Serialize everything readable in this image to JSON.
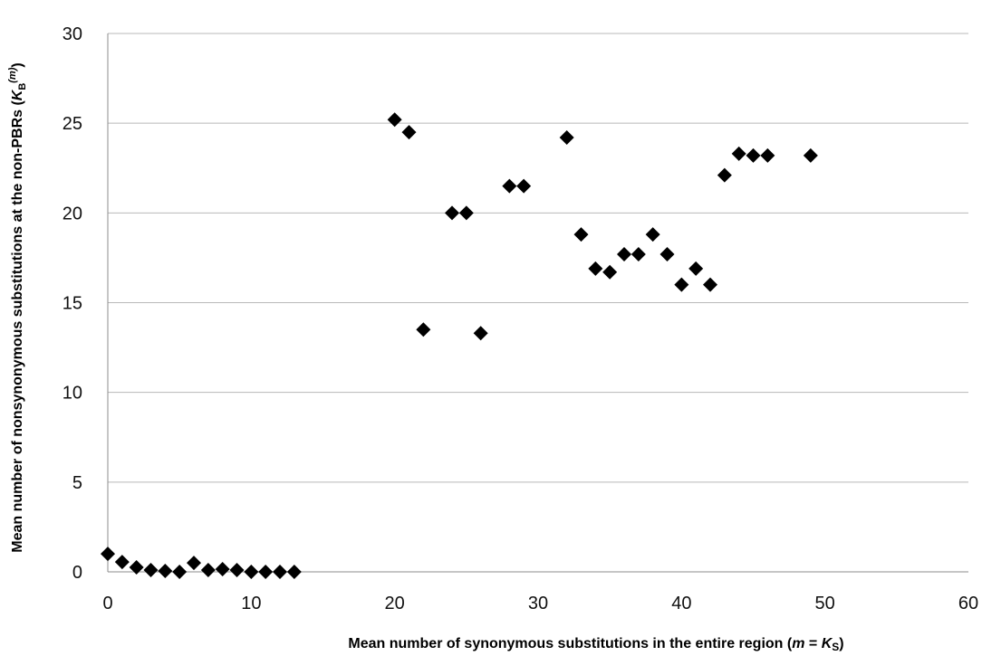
{
  "chart_data": {
    "type": "scatter",
    "title": "",
    "xlabel": {
      "main": "Mean number of synonymous substitutions in the entire region (",
      "var_m": "m",
      "eq": " = ",
      "var_k": "K",
      "sub": "S",
      "close": ")"
    },
    "ylabel": {
      "main": "Mean number of nonsynonymous substitutions at the non-PBRs (",
      "var_k": "K",
      "sub": "B",
      "sup": "(m)",
      "close": ")"
    },
    "xlim": [
      0,
      60
    ],
    "ylim": [
      0,
      30
    ],
    "x_ticks": [
      "0",
      "10",
      "20",
      "30",
      "40",
      "50",
      "60"
    ],
    "y_ticks": [
      "0",
      "5",
      "10",
      "15",
      "20",
      "25",
      "30"
    ],
    "grid": "horizontal",
    "legend": "none",
    "marker": "diamond",
    "marker_color": "#000000",
    "points": [
      {
        "x": 0,
        "y": 1.0
      },
      {
        "x": 1,
        "y": 0.55
      },
      {
        "x": 2,
        "y": 0.25
      },
      {
        "x": 3,
        "y": 0.1
      },
      {
        "x": 4,
        "y": 0.05
      },
      {
        "x": 5,
        "y": 0.0
      },
      {
        "x": 6,
        "y": 0.5
      },
      {
        "x": 7,
        "y": 0.1
      },
      {
        "x": 8,
        "y": 0.15
      },
      {
        "x": 9,
        "y": 0.1
      },
      {
        "x": 10,
        "y": 0.0
      },
      {
        "x": 11,
        "y": 0.0
      },
      {
        "x": 12,
        "y": 0.0
      },
      {
        "x": 13,
        "y": 0.0
      },
      {
        "x": 20,
        "y": 25.2
      },
      {
        "x": 21,
        "y": 24.5
      },
      {
        "x": 22,
        "y": 13.5
      },
      {
        "x": 24,
        "y": 20.0
      },
      {
        "x": 25,
        "y": 20.0
      },
      {
        "x": 26,
        "y": 13.3
      },
      {
        "x": 28,
        "y": 21.5
      },
      {
        "x": 29,
        "y": 21.5
      },
      {
        "x": 32,
        "y": 24.2
      },
      {
        "x": 33,
        "y": 18.8
      },
      {
        "x": 34,
        "y": 16.9
      },
      {
        "x": 35,
        "y": 16.7
      },
      {
        "x": 36,
        "y": 17.7
      },
      {
        "x": 37,
        "y": 17.7
      },
      {
        "x": 38,
        "y": 18.8
      },
      {
        "x": 39,
        "y": 17.7
      },
      {
        "x": 40,
        "y": 16.0
      },
      {
        "x": 41,
        "y": 16.9
      },
      {
        "x": 42,
        "y": 16.0
      },
      {
        "x": 43,
        "y": 22.1
      },
      {
        "x": 44,
        "y": 23.3
      },
      {
        "x": 45,
        "y": 23.2
      },
      {
        "x": 46,
        "y": 23.2
      },
      {
        "x": 49,
        "y": 23.2
      }
    ]
  }
}
